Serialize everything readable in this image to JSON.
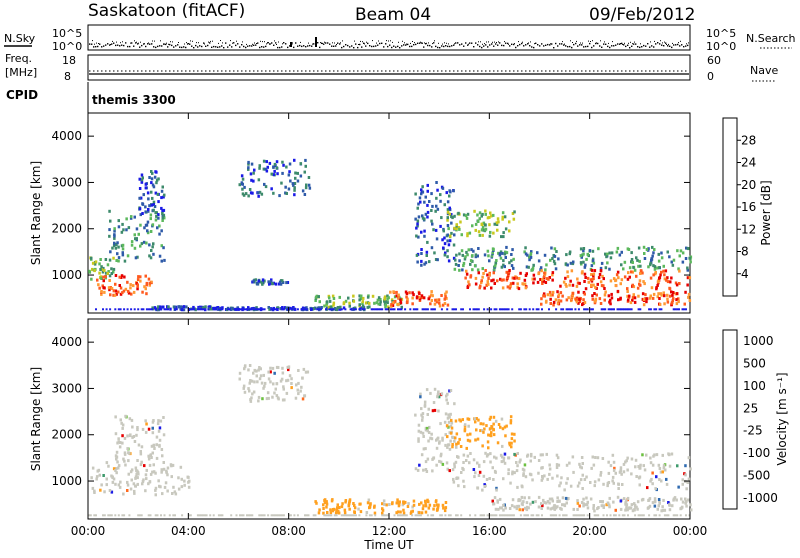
{
  "header": {
    "station": "Saskatoon (fitACF)",
    "beam": "Beam 04",
    "date": "09/Feb/2012"
  },
  "strip": {
    "nsky_label": "N.Sky",
    "nsearch_label": "N.Search",
    "freq_label_1": "Freq.",
    "freq_label_2": "[MHz]",
    "nave_label": "Nave",
    "cpid_label": "CPID",
    "cpid_value": "themis 3300",
    "nsky_ticks": [
      "10^5",
      "10^0"
    ],
    "nsearch_ticks": [
      "10^5",
      "10^0"
    ],
    "freq_ticks": [
      "18",
      "8"
    ],
    "nave_ticks": [
      "60",
      "0"
    ]
  },
  "chart_data": [
    {
      "type": "heatmap",
      "name_key": "power",
      "ylabel": "Slant Range [km]",
      "xlabel": "",
      "ylim": [
        180,
        4500
      ],
      "yticks": [
        1000,
        2000,
        3000,
        4000
      ],
      "xticks": [
        "00:00",
        "04:00",
        "08:00",
        "12:00",
        "16:00",
        "20:00",
        "00:00"
      ],
      "colorbar_label": "Power [dB]",
      "colorbar_ticks": [
        "4",
        "8",
        "12",
        "16",
        "20",
        "24",
        "28"
      ],
      "colorbar_colors": [
        "#1a1ae6",
        "#2e5aa8",
        "#3d8a6b",
        "#5cb85c",
        "#c8c81e",
        "#ff9933",
        "#ff5a1e",
        "#e60000"
      ],
      "colorbar_tick_positions": [
        4,
        8,
        12,
        16,
        20,
        24,
        28
      ],
      "colorbar_range": [
        0,
        32
      ],
      "features": [
        {
          "t": [
            0.0,
            1.0
          ],
          "r": [
            900,
            1400
          ],
          "level": 3
        },
        {
          "t": [
            0.3,
            2.5
          ],
          "r": [
            550,
            1000
          ],
          "level": 6
        },
        {
          "t": [
            0.8,
            3.0
          ],
          "r": [
            1300,
            2400
          ],
          "level": 2
        },
        {
          "t": [
            2.0,
            3.0
          ],
          "r": [
            2200,
            3300
          ],
          "level": 1
        },
        {
          "t": [
            2.5,
            5.0
          ],
          "r": [
            250,
            320
          ],
          "level": 1
        },
        {
          "t": [
            5.0,
            11.0
          ],
          "r": [
            250,
            300
          ],
          "level": 1
        },
        {
          "t": [
            6.0,
            8.8
          ],
          "r": [
            2700,
            3500
          ],
          "level": 1
        },
        {
          "t": [
            6.5,
            8.0
          ],
          "r": [
            800,
            900
          ],
          "level": 1
        },
        {
          "t": [
            9.0,
            12.5
          ],
          "r": [
            300,
            550
          ],
          "level": 3
        },
        {
          "t": [
            12.0,
            14.3
          ],
          "r": [
            300,
            650
          ],
          "level": 6
        },
        {
          "t": [
            13.0,
            14.6
          ],
          "r": [
            1200,
            3000
          ],
          "level": 1
        },
        {
          "t": [
            14.2,
            17.0
          ],
          "r": [
            1800,
            2400
          ],
          "level": 3
        },
        {
          "t": [
            14.5,
            24.0
          ],
          "r": [
            1100,
            1600
          ],
          "level": 2
        },
        {
          "t": [
            15.0,
            24.0
          ],
          "r": [
            700,
            1100
          ],
          "level": 6
        },
        {
          "t": [
            18.0,
            24.0
          ],
          "r": [
            350,
            650
          ],
          "level": 6
        }
      ]
    },
    {
      "type": "heatmap",
      "name_key": "velocity",
      "ylabel": "Slant Range [km]",
      "xlabel": "Time UT",
      "ylim": [
        180,
        4500
      ],
      "yticks": [
        1000,
        2000,
        3000,
        4000
      ],
      "xticks": [
        "00:00",
        "04:00",
        "08:00",
        "12:00",
        "16:00",
        "20:00",
        "00:00"
      ],
      "colorbar_label": "Velocity [m s⁻¹]",
      "colorbar_ticks": [
        "1000",
        "500",
        "100",
        "25",
        "-25",
        "-100",
        "-500",
        "-1000"
      ],
      "colorbar_colors": [
        "#1a1ae6",
        "#2e6ab0",
        "#3d9a6b",
        "#6cc040",
        "#c8c8be",
        "#ffa01e",
        "#ff6a1e",
        "#e60000"
      ],
      "features": [
        {
          "t": [
            0.0,
            4.0
          ],
          "r": [
            700,
            1400
          ],
          "cls": "grey"
        },
        {
          "t": [
            1.0,
            3.0
          ],
          "r": [
            1400,
            2400
          ],
          "cls": "grey"
        },
        {
          "t": [
            6.0,
            8.8
          ],
          "r": [
            2700,
            3500
          ],
          "cls": "grey"
        },
        {
          "t": [
            9.0,
            14.3
          ],
          "r": [
            300,
            600
          ],
          "cls": "orange"
        },
        {
          "t": [
            13.0,
            14.6
          ],
          "r": [
            1200,
            3000
          ],
          "cls": "grey"
        },
        {
          "t": [
            14.2,
            17.0
          ],
          "r": [
            1700,
            2400
          ],
          "cls": "orange"
        },
        {
          "t": [
            14.5,
            24.0
          ],
          "r": [
            800,
            1600
          ],
          "cls": "grey"
        },
        {
          "t": [
            16.0,
            24.0
          ],
          "r": [
            350,
            650
          ],
          "cls": "grey"
        }
      ]
    }
  ]
}
